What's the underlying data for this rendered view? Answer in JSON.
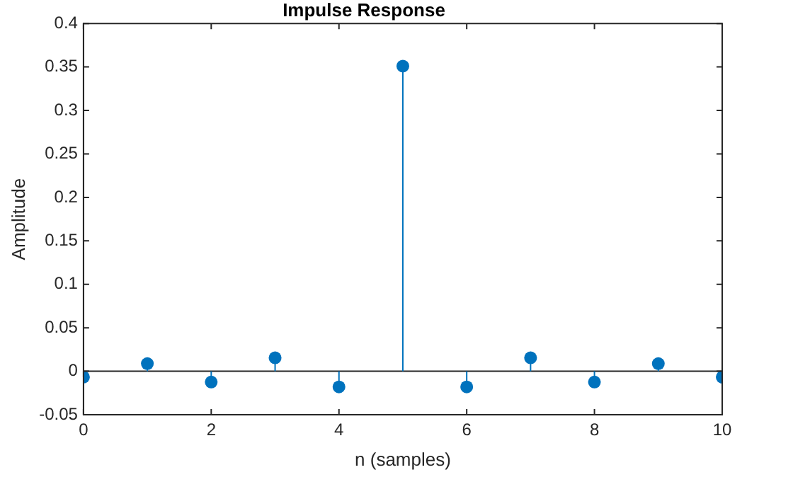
{
  "chart_data": {
    "type": "lollipop",
    "title": "Impulse Response",
    "xlabel": "n (samples)",
    "ylabel": "Amplitude",
    "x": [
      0,
      1,
      2,
      3,
      4,
      5,
      6,
      7,
      8,
      9,
      10
    ],
    "series": [
      {
        "color": "#0072bd",
        "values": [
          -0.0067,
          0.0088,
          -0.0124,
          0.0155,
          -0.018,
          0.351,
          -0.018,
          0.0155,
          -0.0124,
          0.0088,
          -0.0067
        ]
      }
    ],
    "xlim": [
      0,
      10
    ],
    "xticks": [
      0,
      2,
      4,
      6,
      8,
      10
    ],
    "ylim": [
      -0.05,
      0.4
    ],
    "yticks": [
      -0.05,
      0,
      0.05,
      0.1,
      0.15,
      0.2,
      0.25,
      0.3,
      0.35,
      0.4
    ],
    "ref_lines": [
      {
        "axis": "y",
        "value": 0,
        "color": "#262626"
      }
    ],
    "marker": "circle",
    "grid": false,
    "legend": false
  }
}
